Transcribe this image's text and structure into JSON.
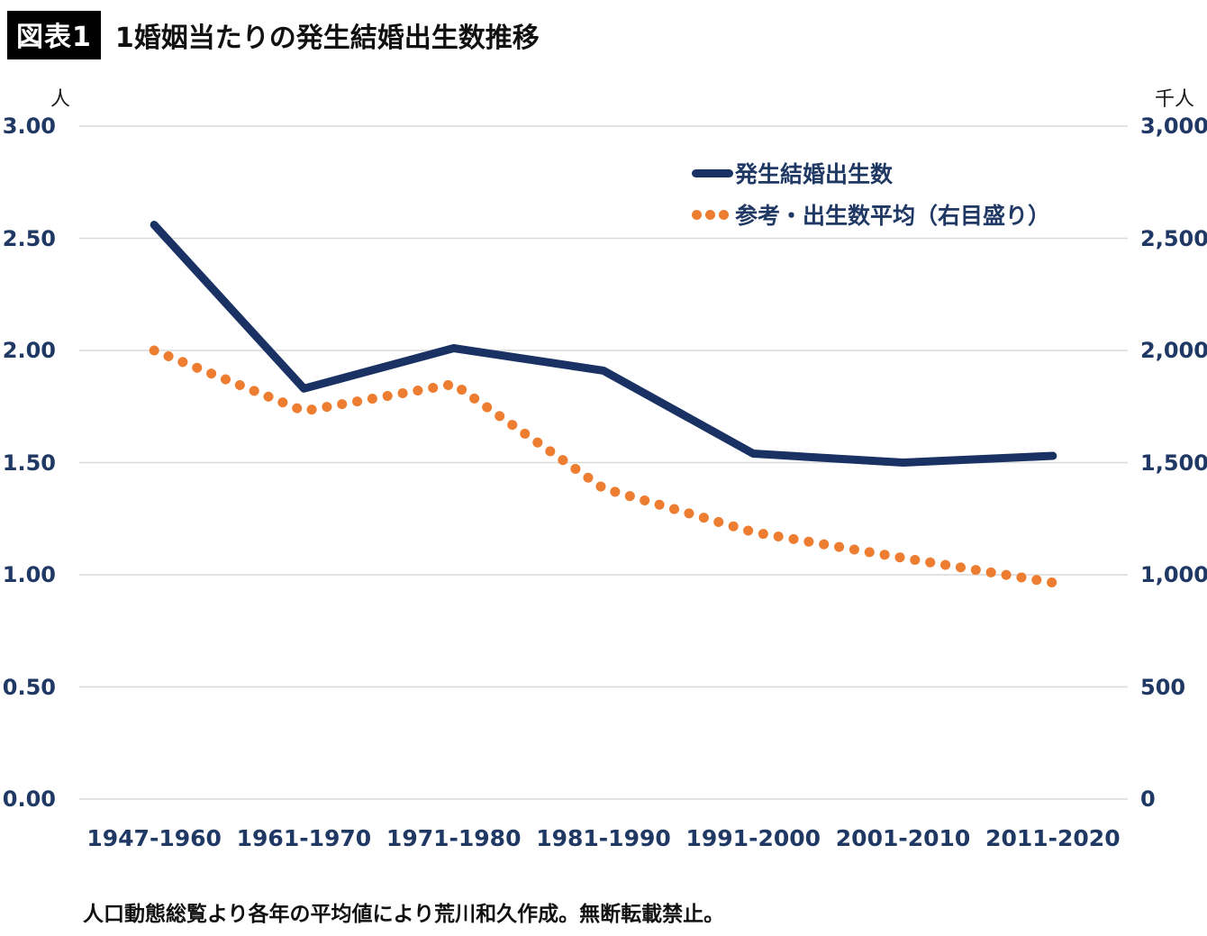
{
  "header": {
    "badge": "図表1",
    "title": "1婚姻当たりの発生結婚出生数推移"
  },
  "footer": {
    "note": "人口動態総覧より各年の平均値により荒川和久作成。無断転載禁止。"
  },
  "colors": {
    "navy_line": "#1a3263",
    "orange_dots": "#ed7d31",
    "tick_text": "#1f3864",
    "gridline": "#d9d9d9",
    "badge_bg": "#000000",
    "badge_text": "#ffffff"
  },
  "chart_data": {
    "type": "line",
    "title": "1婚姻当たりの発生結婚出生数推移",
    "categories": [
      "1947-1960",
      "1961-1970",
      "1971-1980",
      "1981-1990",
      "1991-2000",
      "2001-2010",
      "2011-2020"
    ],
    "series": [
      {
        "name": "発生結婚出生数",
        "axis": "left",
        "color": "#1a3263",
        "line_style": "solid",
        "values": [
          2.56,
          1.83,
          2.01,
          1.91,
          1.54,
          1.5,
          1.53
        ]
      },
      {
        "name": "参考・出生数平均（右目盛り）",
        "axis": "right",
        "color": "#ed7d31",
        "line_style": "dotted",
        "values": [
          2000,
          1730,
          1850,
          1385,
          1190,
          1075,
          965
        ]
      }
    ],
    "left_axis": {
      "unit": "人",
      "min": 0,
      "max": 3,
      "tick_labels_top_to_bottom": [
        "3.00",
        "2.50",
        "2.00",
        "1.50",
        "1.00",
        "0.50",
        "0.00"
      ]
    },
    "right_axis": {
      "unit": "千人",
      "min": 0,
      "max": 3000,
      "tick_labels_top_to_bottom": [
        "3,000",
        "2,500",
        "2,000",
        "1,500",
        "1,000",
        "500",
        "0"
      ]
    },
    "grid": "horizontal",
    "legend_position": "top-right"
  }
}
